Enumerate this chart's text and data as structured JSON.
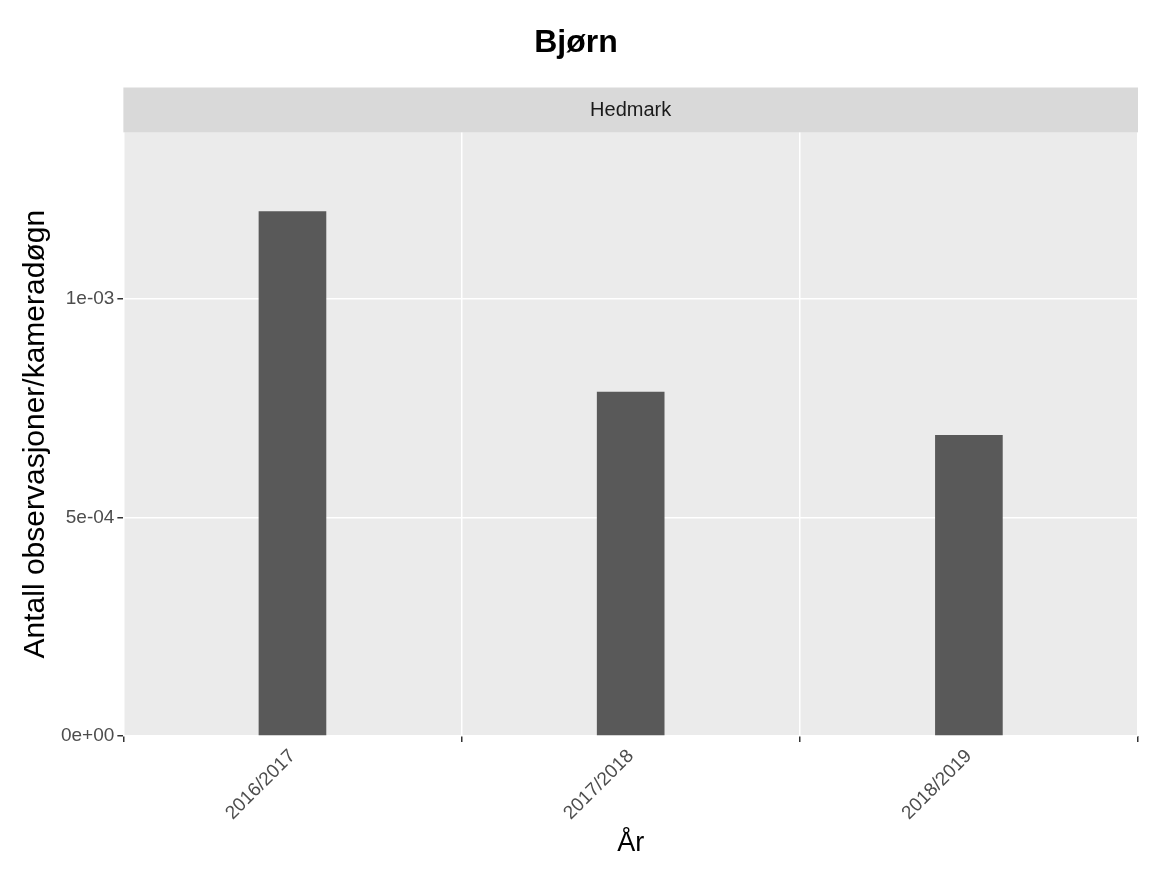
{
  "chart_data": {
    "type": "bar",
    "title": "Bjørn",
    "subtitle": "Hedmark",
    "xlabel": "År",
    "ylabel": "Antall observasjoner/kameradøgn",
    "categories": [
      "2016/2017",
      "2017/2018",
      "2018/2019"
    ],
    "values": [
      0.0012,
      0.000787,
      0.000688
    ],
    "color": "#595959",
    "ylim": [
      0,
      0.00138
    ],
    "yticks": [
      {
        "value": 0,
        "label": "0e+00"
      },
      {
        "value": 0.0005,
        "label": "5e-04"
      },
      {
        "value": 0.001,
        "label": "1e-03"
      }
    ],
    "grid": true,
    "legend": false
  }
}
